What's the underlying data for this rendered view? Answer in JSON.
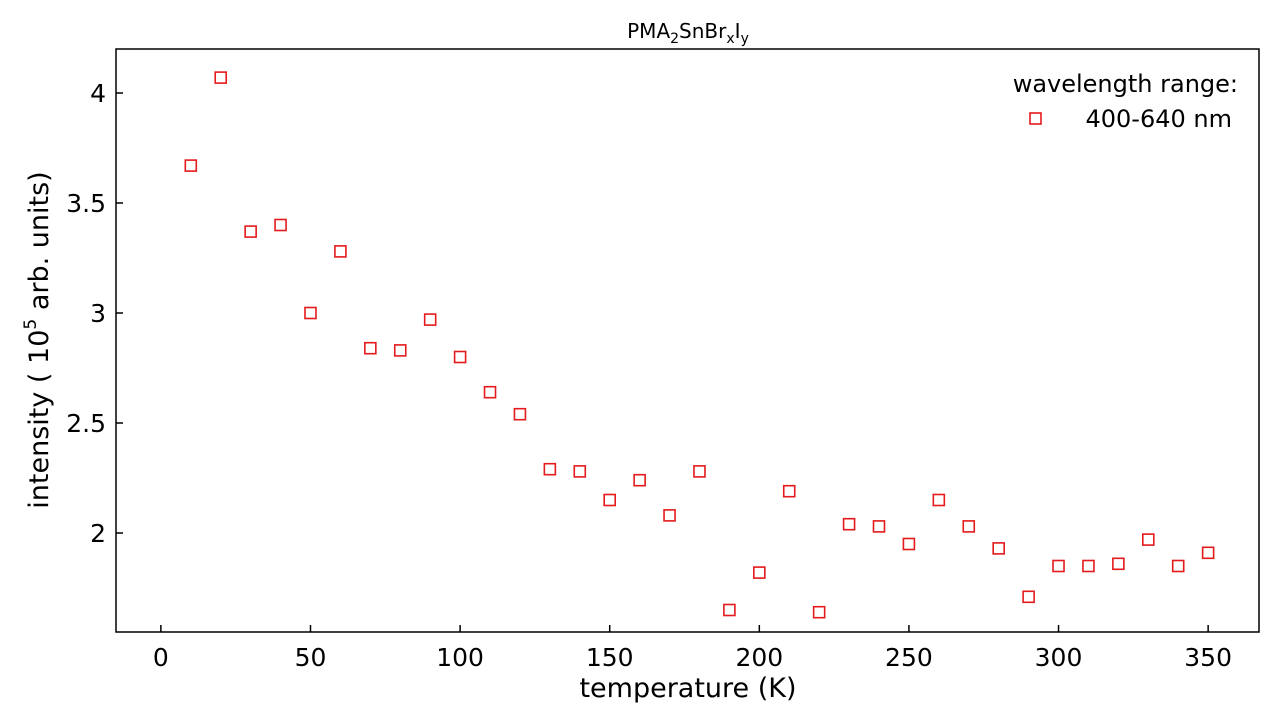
{
  "chart_data": {
    "type": "scatter",
    "title": {
      "base": "PMA",
      "sub1": "2",
      "mid1": "SnBr",
      "sub2": "x",
      "mid2": "I",
      "sub3": "y"
    },
    "xlabel": "temperature (K)",
    "ylabel": {
      "pre": "intensity ( 10",
      "sup": "5",
      "post": " arb. units)"
    },
    "xlim": [
      -15,
      367
    ],
    "ylim": [
      1.55,
      4.2
    ],
    "x_ticks": [
      {
        "value": 0,
        "label": "0"
      },
      {
        "value": 50,
        "label": "50"
      },
      {
        "value": 100,
        "label": "100"
      },
      {
        "value": 150,
        "label": "150"
      },
      {
        "value": 200,
        "label": "200"
      },
      {
        "value": 250,
        "label": "250"
      },
      {
        "value": 300,
        "label": "300"
      },
      {
        "value": 350,
        "label": "350"
      }
    ],
    "y_ticks": [
      {
        "value": 2,
        "label": "2"
      },
      {
        "value": 2.5,
        "label": "2.5"
      },
      {
        "value": 3,
        "label": "3"
      },
      {
        "value": 3.5,
        "label": "3.5"
      },
      {
        "value": 4,
        "label": "4"
      }
    ],
    "grid": false,
    "legend": {
      "title": "wavelength range:",
      "placement": "top-right"
    },
    "series": [
      {
        "name": "400-640 nm",
        "color": "#e41a1c",
        "marker": "square-open",
        "x": [
          10,
          20,
          30,
          40,
          50,
          60,
          70,
          80,
          90,
          100,
          110,
          120,
          130,
          140,
          150,
          160,
          170,
          180,
          190,
          200,
          210,
          220,
          230,
          240,
          250,
          260,
          270,
          280,
          290,
          300,
          310,
          320,
          330,
          340,
          350
        ],
        "y": [
          3.67,
          4.07,
          3.37,
          3.4,
          3.0,
          3.28,
          2.84,
          2.83,
          2.97,
          2.8,
          2.64,
          2.54,
          2.29,
          2.28,
          2.15,
          2.24,
          2.08,
          2.28,
          1.65,
          1.82,
          2.19,
          1.64,
          2.04,
          2.03,
          1.95,
          2.15,
          2.03,
          1.93,
          1.71,
          1.85,
          1.85,
          1.86,
          1.97,
          1.85,
          1.91
        ]
      }
    ]
  }
}
